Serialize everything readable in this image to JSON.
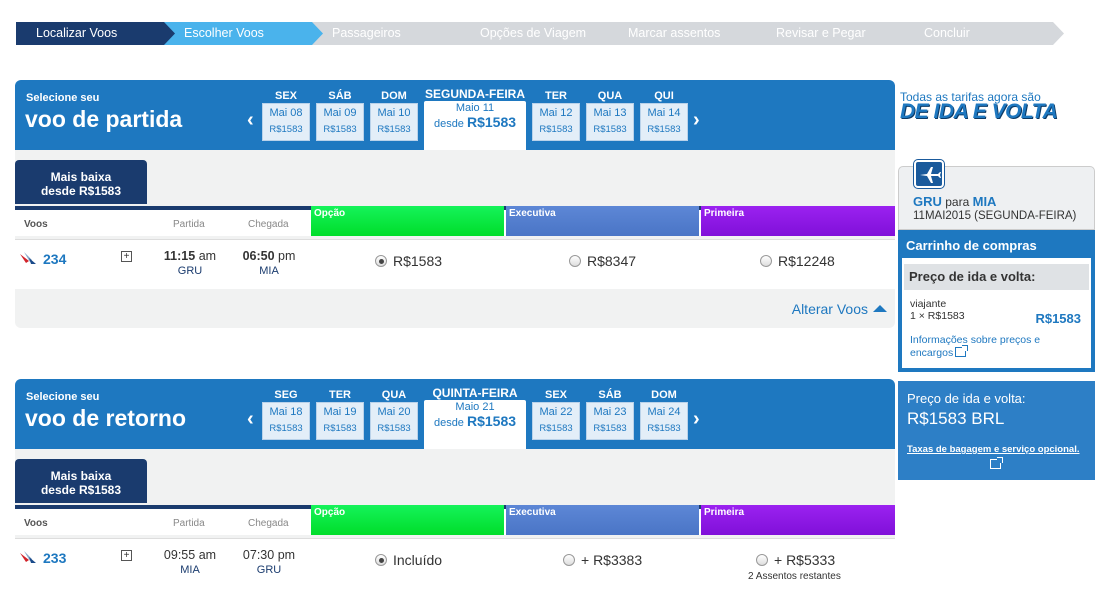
{
  "steps": [
    "Localizar Voos",
    "Escolher Voos",
    "Passageiros",
    "Opções de Viagem",
    "Marcar assentos",
    "Revisar e Pegar",
    "Concluir"
  ],
  "outbound": {
    "select_small": "Selecione seu",
    "select_big": "voo de partida",
    "days": [
      {
        "name": "SEX",
        "date": "Mai 08",
        "price": "R$1583"
      },
      {
        "name": "SÁB",
        "date": "Mai 09",
        "price": "R$1583"
      },
      {
        "name": "DOM",
        "date": "Mai 10",
        "price": "R$1583"
      },
      {
        "name": "SEGUNDA-FEIRA",
        "date": "Maio 11",
        "price_prefix": "desde",
        "price": "R$1583"
      },
      {
        "name": "TER",
        "date": "Mai 12",
        "price": "R$1583"
      },
      {
        "name": "QUA",
        "date": "Mai 13",
        "price": "R$1583"
      },
      {
        "name": "QUI",
        "date": "Mai 14",
        "price": "R$1583"
      }
    ],
    "tab_line1": "Mais baixa",
    "tab_line2": "desde R$1583",
    "flight": {
      "number": "234",
      "dep_time": "11:15",
      "dep_ampm": "am",
      "dep_airport": "GRU",
      "arr_time": "06:50",
      "arr_ampm": "pm",
      "arr_airport": "MIA",
      "fare1": "R$1583",
      "fare2": "R$8347",
      "fare3": "R$12248"
    },
    "alter_label": "Alterar Voos"
  },
  "return": {
    "select_small": "Selecione seu",
    "select_big": "voo de retorno",
    "days": [
      {
        "name": "SEG",
        "date": "Mai 18",
        "price": "R$1583"
      },
      {
        "name": "TER",
        "date": "Mai 19",
        "price": "R$1583"
      },
      {
        "name": "QUA",
        "date": "Mai 20",
        "price": "R$1583"
      },
      {
        "name": "QUINTA-FEIRA",
        "date": "Maio 21",
        "price_prefix": "desde",
        "price": "R$1583"
      },
      {
        "name": "SEX",
        "date": "Mai 22",
        "price": "R$1583"
      },
      {
        "name": "SÁB",
        "date": "Mai 23",
        "price": "R$1583"
      },
      {
        "name": "DOM",
        "date": "Mai 24",
        "price": "R$1583"
      }
    ],
    "tab_line1": "Mais baixa",
    "tab_line2": "desde R$1583",
    "flight": {
      "number": "233",
      "dep_time": "09:55",
      "dep_ampm": "am",
      "dep_airport": "MIA",
      "arr_time": "07:30",
      "arr_ampm": "pm",
      "arr_airport": "GRU",
      "fare1": "Incluído",
      "fare2": "+ R$3383",
      "fare3": "+ R$5333",
      "seats_left": "2 Assentos restantes"
    }
  },
  "columns": {
    "flights": "Voos",
    "dep": "Partida",
    "arr": "Chegada",
    "fare1": "Opção",
    "fare2": "Executiva",
    "fare3": "Primeira"
  },
  "sidebar": {
    "promo_line1": "Todas as tarifas agora são",
    "promo_line2": "DE IDA E VOLTA",
    "trip_from": "GRU",
    "trip_to_word": "para",
    "trip_to": "MIA",
    "trip_date": "11MAI2015 (SEGUNDA-FEIRA)",
    "cart_title": "Carrinho de compras",
    "cart_price_header": "Preço de ida e volta:",
    "traveler_label": "viajante",
    "traveler_detail": "1 × R$1583",
    "traveler_price": "R$1583",
    "info_link": "Informações sobre preços e encargos",
    "total_label": "Preço de ida e volta:",
    "total_value": "R$1583 BRL",
    "baggage_link": "Taxas de bagagem e serviço opcional."
  },
  "colors": {
    "primary": "#1e78c0",
    "dark": "#1a3b6e",
    "fare_green": "#00dd2a",
    "fare_blue": "#4a75c6",
    "fare_purple": "#8010d9"
  }
}
